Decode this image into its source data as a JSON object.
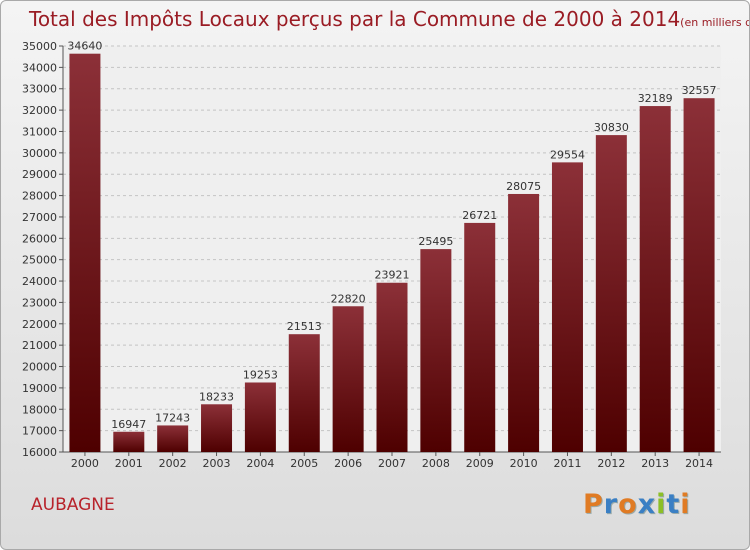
{
  "title": "Total des Impôts Locaux perçus par la Commune de 2000 à 2014",
  "subtitle": "(en milliers d'€)",
  "commune": "AUBAGNE",
  "logo": "Proxiti",
  "colors": {
    "title": "#9a1c24",
    "bar_top": "#8c3038",
    "bar_bottom": "#4e0000",
    "commune": "#b8232b"
  },
  "chart_data": {
    "type": "bar",
    "title": "Total des Impôts Locaux perçus par la Commune de 2000 à 2014",
    "ylabel": "en milliers d'€",
    "xlabel": "",
    "categories": [
      "2000",
      "2001",
      "2002",
      "2003",
      "2004",
      "2005",
      "2006",
      "2007",
      "2008",
      "2009",
      "2010",
      "2011",
      "2012",
      "2013",
      "2014"
    ],
    "values": [
      34640,
      16947,
      17243,
      18233,
      19253,
      21513,
      22820,
      23921,
      25495,
      26721,
      28075,
      29554,
      30830,
      32189,
      32557
    ],
    "ylim": [
      16000,
      35000
    ],
    "yticks": [
      16000,
      17000,
      18000,
      19000,
      20000,
      21000,
      22000,
      23000,
      24000,
      25000,
      26000,
      27000,
      28000,
      29000,
      30000,
      31000,
      32000,
      33000,
      34000,
      35000
    ],
    "grid": true
  }
}
